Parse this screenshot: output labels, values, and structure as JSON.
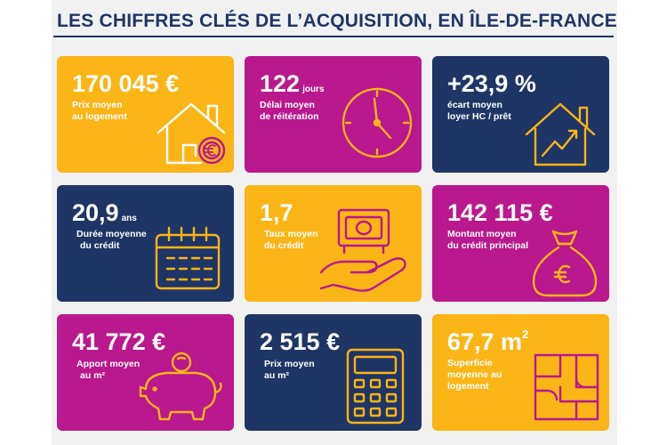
{
  "title": "LES CHIFFRES CLÉS DE L’ACQUISITION, EN ÎLE-DE-FRANCE",
  "colors": {
    "yellow": "#fbb517",
    "magenta": "#b9188e",
    "navy": "#1f3566",
    "title": "#1f3566"
  },
  "cards": [
    {
      "value": "170 045 €",
      "unit": "",
      "label1": "Prix moyen",
      "label2": "au logement",
      "label3": "",
      "icon": "house-euro-icon"
    },
    {
      "value": "122",
      "unit": "jours",
      "label1": "Délai moyen",
      "label2": "de réitération",
      "label3": "",
      "icon": "clock-icon"
    },
    {
      "value": "+23,9 %",
      "unit": "",
      "label1": "écart moyen",
      "label2": "loyer HC / prêt",
      "label3": "",
      "icon": "house-growth-icon"
    },
    {
      "value": "20,9",
      "unit": "ans",
      "label1": "Durée moyenne",
      "label2": "du crédit",
      "label3": "",
      "icon": "calendar-icon"
    },
    {
      "value": "1,7",
      "unit": "",
      "label1": "Taux moyen",
      "label2": "du crédit",
      "label3": "",
      "icon": "hand-money-icon"
    },
    {
      "value": "142 115 €",
      "unit": "",
      "label1": "Montant moyen",
      "label2": "du crédit principal",
      "label3": "",
      "icon": "money-bag-icon"
    },
    {
      "value": "41 772 €",
      "unit": "",
      "label1": "Apport moyen",
      "label2": "au m²",
      "label3": "",
      "icon": "piggy-bank-icon"
    },
    {
      "value": "2 515 €",
      "unit": "",
      "label1": "Prix moyen",
      "label2": "au m²",
      "label3": "",
      "icon": "calculator-icon"
    },
    {
      "value": "67,7 m",
      "unit": "2",
      "label1": "Superficie",
      "label2": "moyenne au",
      "label3": "logement",
      "icon": "floor-plan-icon"
    }
  ]
}
